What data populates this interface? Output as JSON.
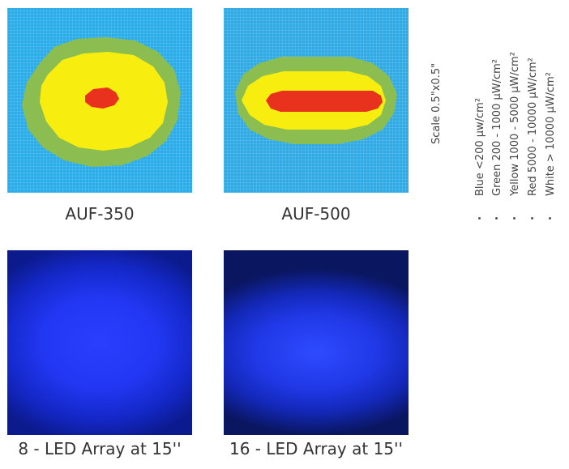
{
  "panels": {
    "auf350": {
      "caption": "AUF-350"
    },
    "auf500": {
      "caption": "AUF-500"
    },
    "led8": {
      "caption": "8 - LED Array at 15''"
    },
    "led16": {
      "caption": "16 - LED Array at 15''"
    }
  },
  "scale_label": "Scale 0.5\"x0.5\"",
  "legend": [
    {
      "label": "Blue <200 μw/cm²",
      "color": "#2dabe6"
    },
    {
      "label": "Green 200 - 1000 μW/cm²",
      "color": "#8cbd50"
    },
    {
      "label": "Yellow 1000 - 5000 μW/cm²",
      "color": "#f7ee10"
    },
    {
      "label": "Red 5000 - 10000 μW/cm²",
      "color": "#e8321e"
    },
    {
      "label": "White > 10000 μW/cm²",
      "color": "#ffffff"
    }
  ],
  "colors": {
    "blue": "#2dabe6",
    "green": "#8cbd50",
    "yellow": "#f7ee10",
    "red": "#e8321e"
  }
}
